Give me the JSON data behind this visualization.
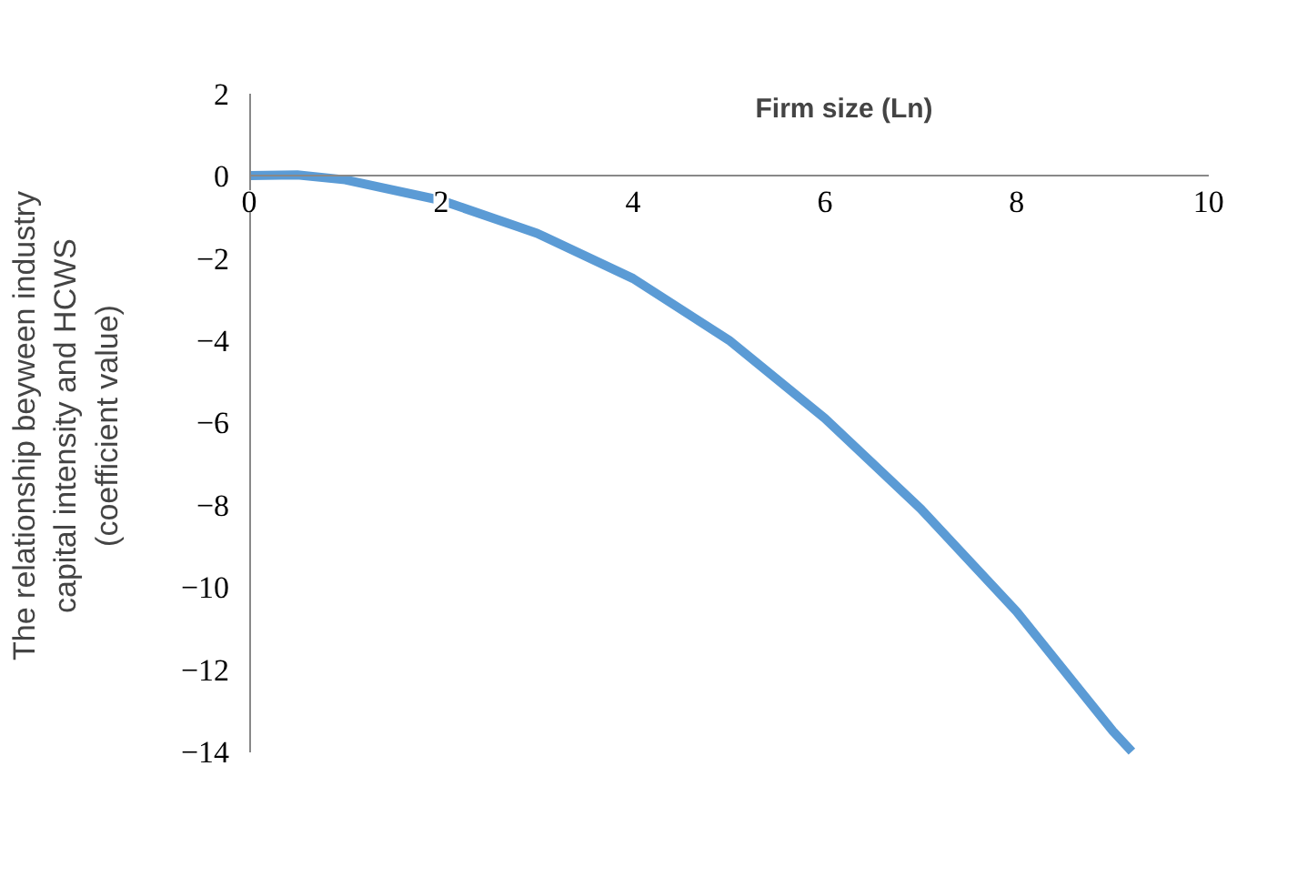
{
  "chart_data": {
    "type": "line",
    "xlabel": "Firm size (Ln)",
    "ylabel": "The relationship beyween industry capital intensity and HCWS (coefficient value)",
    "x": [
      0,
      0.5,
      1,
      2,
      3,
      4,
      5,
      6,
      7,
      8,
      9,
      9.2
    ],
    "series": [
      {
        "color": "#5b9bd5",
        "values": [
          0,
          0.02,
          -0.1,
          -0.6,
          -1.4,
          -2.5,
          -4,
          -5.9,
          -8.1,
          -10.6,
          -13.5,
          -14
        ]
      }
    ],
    "xlim": [
      0,
      10
    ],
    "ylim": [
      -14,
      2
    ],
    "xticks": [
      0,
      2,
      4,
      6,
      8,
      10
    ],
    "yticks": [
      -14,
      -12,
      -10,
      -8,
      -6,
      -4,
      -2,
      0,
      2
    ],
    "grid": false,
    "marker": "none",
    "line_style": "solid"
  }
}
